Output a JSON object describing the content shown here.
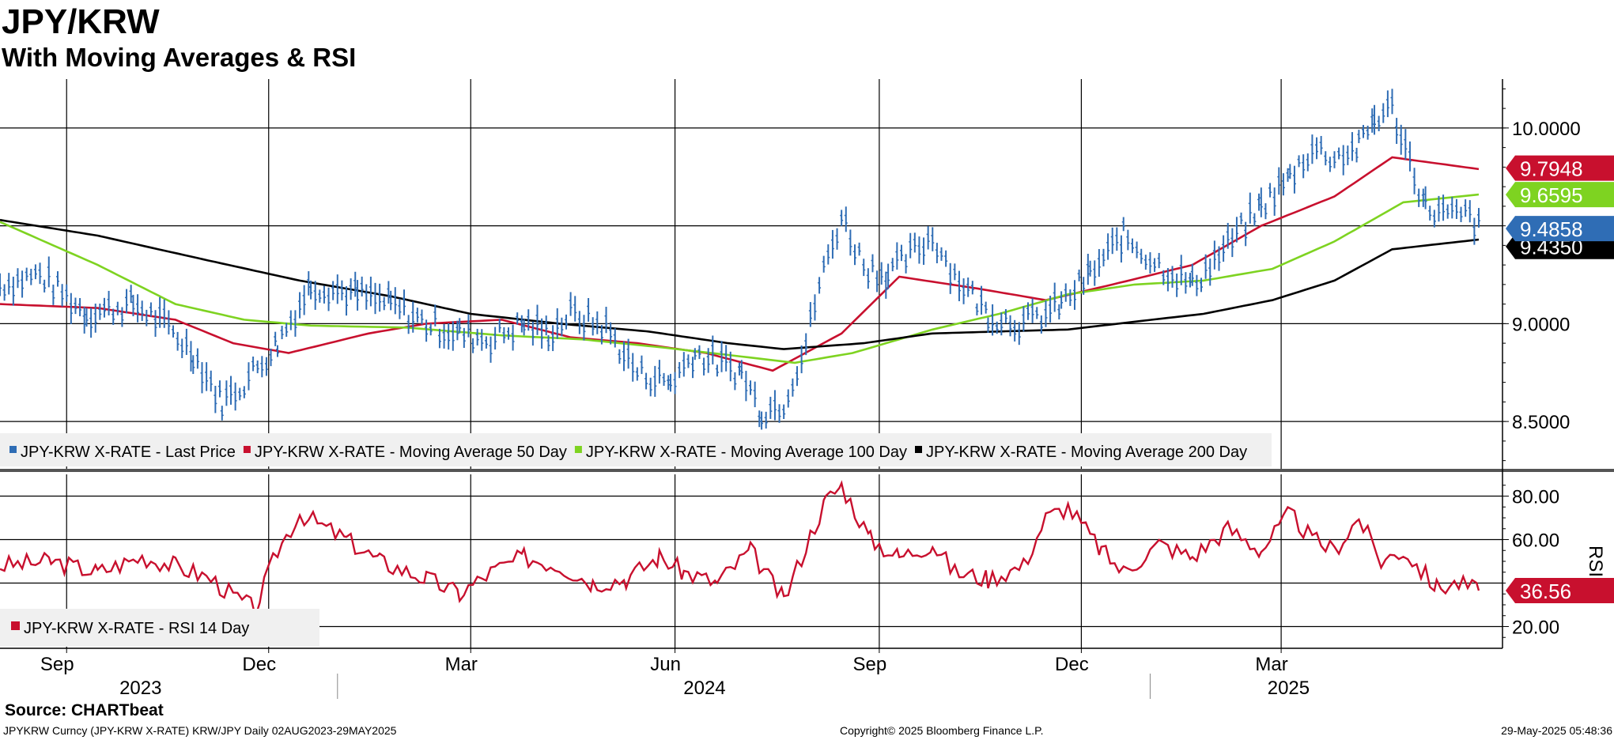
{
  "title": "JPY/KRW",
  "subtitle": "With Moving Averages & RSI",
  "source": "Source: CHARTbeat",
  "footer": {
    "left": "JPYKRW Curncy (JPY-KRW X-RATE) KRW/JPY  Daily 02AUG2023-29MAY2025",
    "center": "Copyright© 2025 Bloomberg Finance L.P.",
    "right": "29-May-2025 05:48:36"
  },
  "colors": {
    "price": "#2f6db5",
    "ma50": "#c8102e",
    "ma100": "#7ed321",
    "ma200": "#000000",
    "rsi": "#c8102e",
    "grid": "#000000"
  },
  "chart_data": [
    {
      "type": "line",
      "panel": "price",
      "ylim": [
        8.25,
        10.25
      ],
      "yticks": [
        "10.0000",
        "9.0000",
        "8.5000"
      ],
      "ytick_values": [
        10.0,
        9.0,
        8.5
      ],
      "x_months": [
        "Sep",
        "Dec",
        "Mar",
        "Jun",
        "Sep",
        "Dec",
        "Mar"
      ],
      "x_years": [
        "2023",
        "2024",
        "2025"
      ],
      "x_range": [
        "2023-08-02",
        "2025-05-29"
      ],
      "legend": [
        "JPY-KRW X-RATE - Last Price",
        "JPY-KRW X-RATE - Moving Average 50 Day",
        "JPY-KRW X-RATE - Moving Average 100 Day",
        "JPY-KRW X-RATE - Moving Average 200 Day"
      ],
      "last_values": {
        "ma50": "9.7948",
        "ma100": "9.6595",
        "price": "9.4858",
        "ma200": "9.4350"
      },
      "series": [
        {
          "name": "JPY-KRW X-RATE - Last Price",
          "style": "bars",
          "x": [
            "2023-08-02",
            "2023-08-20",
            "2023-09-10",
            "2023-10-01",
            "2023-10-15",
            "2023-10-28",
            "2023-11-10",
            "2023-11-20",
            "2023-12-05",
            "2023-12-20",
            "2024-01-10",
            "2024-01-25",
            "2024-02-10",
            "2024-02-25",
            "2024-03-10",
            "2024-03-25",
            "2024-04-05",
            "2024-04-15",
            "2024-05-01",
            "2024-05-15",
            "2024-05-30",
            "2024-06-10",
            "2024-06-20",
            "2024-07-01",
            "2024-07-10",
            "2024-07-20",
            "2024-07-30",
            "2024-08-05",
            "2024-08-15",
            "2024-08-25",
            "2024-09-05",
            "2024-09-15",
            "2024-09-25",
            "2024-10-05",
            "2024-10-20",
            "2024-11-05",
            "2024-11-15",
            "2024-11-22",
            "2024-12-05",
            "2024-12-20",
            "2025-01-05",
            "2025-01-20",
            "2025-02-05",
            "2025-02-20",
            "2025-03-05",
            "2025-03-15",
            "2025-03-25",
            "2025-04-05",
            "2025-04-12",
            "2025-04-20",
            "2025-05-05",
            "2025-05-15",
            "2025-05-25",
            "2025-05-29"
          ],
          "values": [
            9.2,
            9.25,
            9.05,
            9.1,
            9.0,
            8.85,
            8.6,
            8.7,
            8.9,
            9.2,
            9.15,
            9.1,
            9.0,
            8.95,
            8.92,
            9.0,
            8.95,
            9.05,
            8.98,
            8.75,
            8.7,
            8.85,
            8.8,
            8.75,
            8.55,
            8.6,
            8.9,
            9.2,
            9.55,
            9.3,
            9.25,
            9.35,
            9.45,
            9.25,
            9.05,
            9.0,
            9.05,
            9.1,
            9.25,
            9.45,
            9.3,
            9.2,
            9.4,
            9.6,
            9.75,
            9.9,
            9.85,
            9.9,
            10.05,
            10.1,
            9.6,
            9.55,
            9.55,
            9.49
          ]
        },
        {
          "name": "JPY-KRW X-RATE - Moving Average 50 Day",
          "style": "line",
          "x": [
            "2023-08-02",
            "2023-09-15",
            "2023-10-20",
            "2023-11-15",
            "2023-12-10",
            "2024-01-15",
            "2024-02-10",
            "2024-03-15",
            "2024-04-15",
            "2024-05-15",
            "2024-06-15",
            "2024-07-15",
            "2024-08-15",
            "2024-09-10",
            "2024-10-15",
            "2024-11-15",
            "2024-12-15",
            "2025-01-20",
            "2025-02-20",
            "2025-03-25",
            "2025-04-20",
            "2025-05-29"
          ],
          "values": [
            9.1,
            9.08,
            9.02,
            8.9,
            8.85,
            8.95,
            9.0,
            9.02,
            8.93,
            8.9,
            8.85,
            8.76,
            8.95,
            9.24,
            9.18,
            9.12,
            9.2,
            9.3,
            9.5,
            9.65,
            9.85,
            9.79
          ]
        },
        {
          "name": "JPY-KRW X-RATE - Moving Average 100 Day",
          "style": "line",
          "x": [
            "2023-08-02",
            "2023-09-15",
            "2023-10-20",
            "2023-11-20",
            "2023-12-20",
            "2024-02-01",
            "2024-03-15",
            "2024-04-20",
            "2024-05-25",
            "2024-06-25",
            "2024-07-25",
            "2024-08-20",
            "2024-09-25",
            "2024-10-25",
            "2024-11-25",
            "2024-12-25",
            "2025-01-25",
            "2025-02-25",
            "2025-03-25",
            "2025-04-25",
            "2025-05-29"
          ],
          "values": [
            9.52,
            9.3,
            9.1,
            9.02,
            8.99,
            8.98,
            8.94,
            8.92,
            8.88,
            8.84,
            8.8,
            8.85,
            8.97,
            9.05,
            9.15,
            9.2,
            9.22,
            9.28,
            9.42,
            9.62,
            9.66
          ]
        },
        {
          "name": "JPY-KRW X-RATE - Moving Average 200 Day",
          "style": "line",
          "x": [
            "2023-08-02",
            "2023-09-15",
            "2023-11-01",
            "2023-12-15",
            "2024-01-25",
            "2024-03-01",
            "2024-04-10",
            "2024-05-20",
            "2024-06-25",
            "2024-07-20",
            "2024-08-25",
            "2024-09-25",
            "2024-10-25",
            "2024-11-25",
            "2024-12-25",
            "2025-01-25",
            "2025-02-25",
            "2025-03-25",
            "2025-04-20",
            "2025-05-29"
          ],
          "values": [
            9.53,
            9.45,
            9.33,
            9.22,
            9.14,
            9.05,
            9.0,
            8.96,
            8.9,
            8.87,
            8.9,
            8.95,
            8.96,
            8.97,
            9.01,
            9.05,
            9.12,
            9.22,
            9.38,
            9.43
          ]
        }
      ]
    },
    {
      "type": "line",
      "panel": "rsi",
      "ylim": [
        10,
        90
      ],
      "yticks": [
        "80.00",
        "60.00",
        "20.00"
      ],
      "ytick_values": [
        80,
        60,
        20
      ],
      "ylabel": "RSI",
      "legend": [
        "JPY-KRW X-RATE - RSI 14 Day"
      ],
      "last_value": "36.56",
      "series": [
        {
          "name": "JPY-KRW X-RATE - RSI 14 Day",
          "x": [
            "2023-08-02",
            "2023-08-25",
            "2023-09-15",
            "2023-10-05",
            "2023-10-20",
            "2023-11-05",
            "2023-11-15",
            "2023-11-25",
            "2023-12-05",
            "2023-12-15",
            "2024-01-05",
            "2024-01-20",
            "2024-02-10",
            "2024-02-25",
            "2024-03-10",
            "2024-03-25",
            "2024-04-10",
            "2024-04-25",
            "2024-05-10",
            "2024-05-25",
            "2024-06-05",
            "2024-06-20",
            "2024-07-05",
            "2024-07-20",
            "2024-08-01",
            "2024-08-08",
            "2024-08-15",
            "2024-08-28",
            "2024-09-10",
            "2024-09-25",
            "2024-10-05",
            "2024-10-20",
            "2024-11-05",
            "2024-11-15",
            "2024-11-25",
            "2024-12-10",
            "2024-12-20",
            "2025-01-05",
            "2025-01-20",
            "2025-02-05",
            "2025-02-20",
            "2025-03-05",
            "2025-03-15",
            "2025-03-25",
            "2025-04-05",
            "2025-04-15",
            "2025-04-25",
            "2025-05-10",
            "2025-05-20",
            "2025-05-29"
          ],
          "values": [
            48,
            50,
            45,
            52,
            48,
            42,
            34,
            28,
            55,
            72,
            60,
            50,
            42,
            35,
            45,
            52,
            48,
            40,
            42,
            52,
            45,
            40,
            55,
            32,
            62,
            78,
            85,
            60,
            52,
            58,
            45,
            42,
            48,
            70,
            75,
            55,
            45,
            58,
            52,
            65,
            55,
            72,
            60,
            55,
            70,
            50,
            55,
            38,
            40,
            36.56
          ]
        }
      ]
    }
  ]
}
